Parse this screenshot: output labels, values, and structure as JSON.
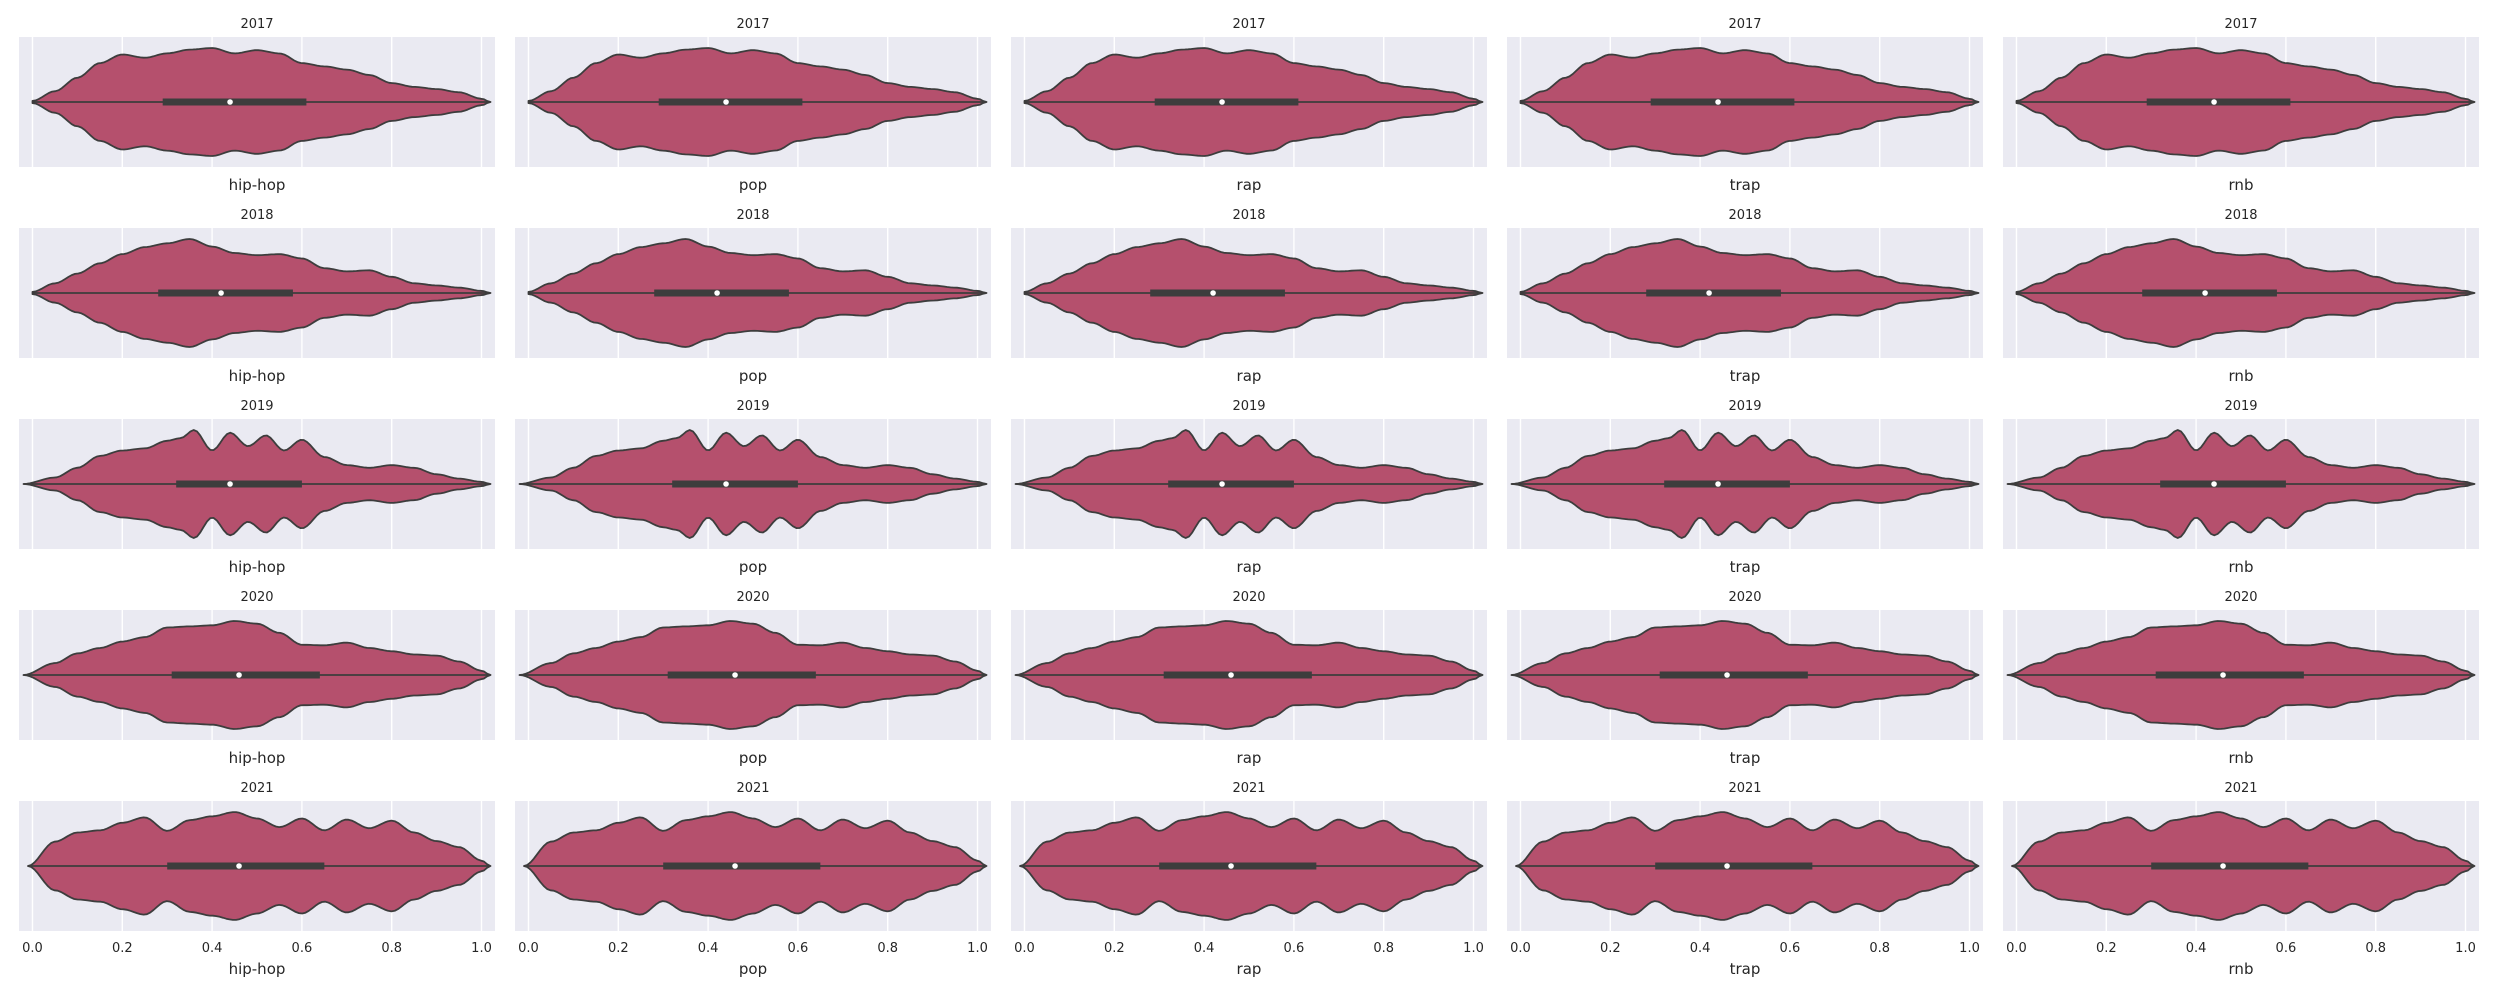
{
  "chart_data": {
    "type": "violin",
    "orientation": "horizontal",
    "grid": true,
    "xlim": [
      -0.03,
      1.03
    ],
    "x_ticks": [
      0.0,
      0.2,
      0.4,
      0.6,
      0.8,
      1.0
    ],
    "x_tick_labels": [
      "0.0",
      "0.2",
      "0.4",
      "0.6",
      "0.8",
      "1.0"
    ],
    "years": [
      "2017",
      "2018",
      "2019",
      "2020",
      "2021"
    ],
    "genres": [
      "hip-hop",
      "pop",
      "rap",
      "trap",
      "rnb"
    ],
    "colors": {
      "violin_fill": "#b5506d",
      "violin_edge": "#3d3d3d",
      "axes_bg": "#eaeaf2",
      "grid": "#ffffff",
      "box": "#3d3d3d",
      "median": "#ffffff"
    },
    "distributions": [
      {
        "year": "2017",
        "range": [
          0.0,
          1.02
        ],
        "box": {
          "q1": 0.29,
          "median": 0.44,
          "q3": 0.61
        },
        "density_x": [
          0.0,
          0.05,
          0.1,
          0.15,
          0.2,
          0.25,
          0.3,
          0.35,
          0.4,
          0.45,
          0.5,
          0.55,
          0.6,
          0.65,
          0.7,
          0.75,
          0.8,
          0.85,
          0.9,
          0.95,
          1.0,
          1.02
        ],
        "density": [
          0.02,
          0.2,
          0.45,
          0.72,
          0.88,
          0.82,
          0.9,
          0.97,
          1.0,
          0.9,
          0.96,
          0.9,
          0.72,
          0.66,
          0.6,
          0.5,
          0.35,
          0.28,
          0.24,
          0.18,
          0.06,
          0.0
        ]
      },
      {
        "year": "2018",
        "range": [
          0.0,
          1.02
        ],
        "box": {
          "q1": 0.28,
          "median": 0.42,
          "q3": 0.58
        },
        "density_x": [
          0.0,
          0.05,
          0.1,
          0.15,
          0.2,
          0.25,
          0.3,
          0.35,
          0.4,
          0.45,
          0.5,
          0.55,
          0.6,
          0.65,
          0.7,
          0.75,
          0.8,
          0.85,
          0.9,
          0.95,
          1.0,
          1.02
        ],
        "density": [
          0.02,
          0.18,
          0.36,
          0.55,
          0.72,
          0.85,
          0.92,
          1.0,
          0.86,
          0.74,
          0.7,
          0.72,
          0.64,
          0.46,
          0.4,
          0.42,
          0.3,
          0.18,
          0.14,
          0.1,
          0.04,
          0.0
        ]
      },
      {
        "year": "2019",
        "range": [
          -0.02,
          1.02
        ],
        "box": {
          "q1": 0.32,
          "median": 0.44,
          "q3": 0.6
        },
        "density_x": [
          -0.02,
          0.05,
          0.1,
          0.15,
          0.2,
          0.25,
          0.3,
          0.33,
          0.36,
          0.4,
          0.44,
          0.48,
          0.52,
          0.56,
          0.6,
          0.65,
          0.7,
          0.75,
          0.8,
          0.85,
          0.9,
          0.95,
          1.0,
          1.02
        ],
        "density": [
          0.0,
          0.12,
          0.3,
          0.52,
          0.62,
          0.66,
          0.8,
          0.85,
          1.0,
          0.62,
          0.95,
          0.7,
          0.9,
          0.62,
          0.82,
          0.5,
          0.35,
          0.3,
          0.35,
          0.3,
          0.18,
          0.1,
          0.04,
          0.0
        ]
      },
      {
        "year": "2020",
        "range": [
          -0.02,
          1.02
        ],
        "box": {
          "q1": 0.31,
          "median": 0.46,
          "q3": 0.64
        },
        "density_x": [
          -0.02,
          0.05,
          0.1,
          0.15,
          0.2,
          0.25,
          0.3,
          0.35,
          0.4,
          0.45,
          0.5,
          0.55,
          0.6,
          0.65,
          0.7,
          0.75,
          0.8,
          0.85,
          0.9,
          0.95,
          1.0,
          1.02
        ],
        "density": [
          0.0,
          0.22,
          0.4,
          0.5,
          0.62,
          0.7,
          0.88,
          0.9,
          0.92,
          1.0,
          0.95,
          0.78,
          0.56,
          0.55,
          0.6,
          0.5,
          0.44,
          0.38,
          0.36,
          0.25,
          0.08,
          0.0
        ]
      },
      {
        "year": "2021",
        "range": [
          -0.01,
          1.02
        ],
        "box": {
          "q1": 0.3,
          "median": 0.46,
          "q3": 0.65
        },
        "density_x": [
          -0.01,
          0.05,
          0.1,
          0.15,
          0.2,
          0.25,
          0.3,
          0.35,
          0.4,
          0.45,
          0.5,
          0.55,
          0.6,
          0.65,
          0.7,
          0.75,
          0.8,
          0.85,
          0.9,
          0.95,
          1.0,
          1.02
        ],
        "density": [
          0.0,
          0.45,
          0.62,
          0.66,
          0.8,
          0.9,
          0.65,
          0.85,
          0.92,
          1.0,
          0.88,
          0.72,
          0.88,
          0.66,
          0.86,
          0.7,
          0.84,
          0.62,
          0.46,
          0.35,
          0.1,
          0.0
        ]
      }
    ]
  }
}
